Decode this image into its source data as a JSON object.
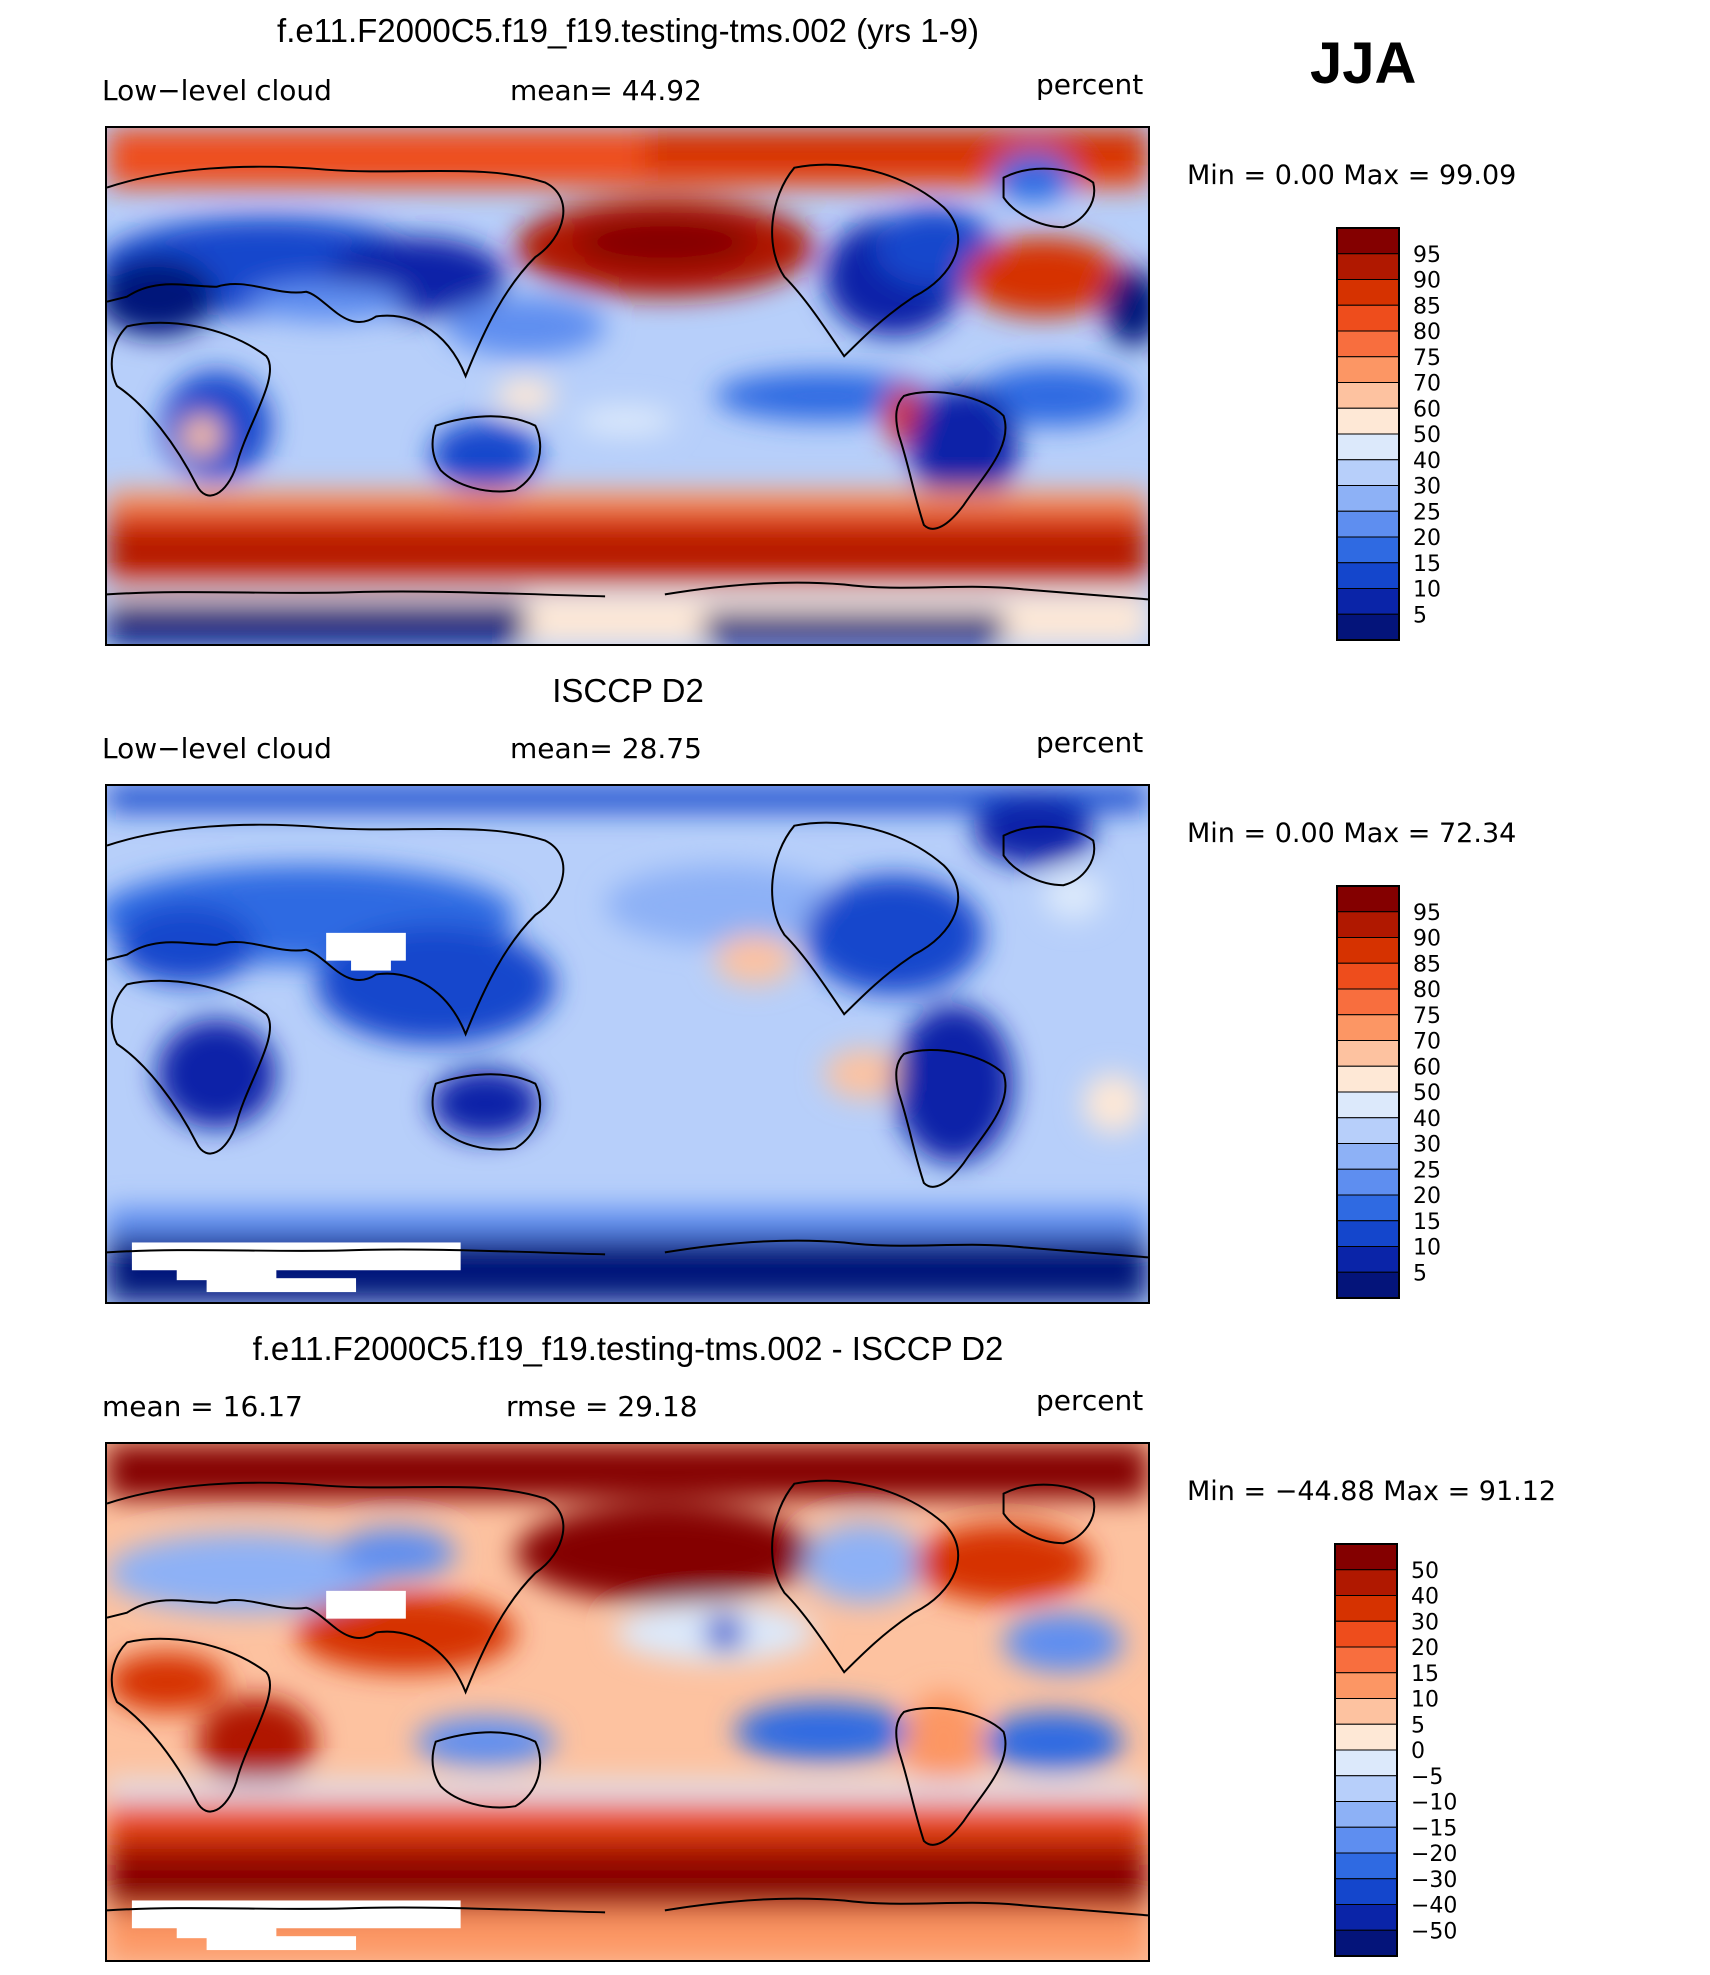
{
  "season": "JJA",
  "units": "percent",
  "panels": [
    {
      "title": "f.e11.F2000C5.f19_f19.testing-tms.002 (yrs 1-9)",
      "left_label": "Low−level cloud",
      "center_label": "mean=   44.92",
      "right_label": "percent",
      "minmax": "Min =     0.00  Max =    99.09",
      "colorbar": {
        "labels": [
          "95",
          "90",
          "85",
          "80",
          "75",
          "70",
          "60",
          "50",
          "40",
          "30",
          "25",
          "20",
          "15",
          "10",
          "5"
        ],
        "colors": [
          "#840000",
          "#b01800",
          "#d63200",
          "#ee4d1c",
          "#f86e3e",
          "#fc9664",
          "#fdc2a0",
          "#fee8d6",
          "#dce9fb",
          "#b7cffa",
          "#8db1f6",
          "#5e8ef0",
          "#2f6ae2",
          "#1446cc",
          "#0a24a8",
          "#04147a"
        ]
      },
      "chart_data": {
        "type": "heatmap",
        "field": "Low-level cloud fraction (model)",
        "mean": 44.92,
        "min": 0.0,
        "max": 99.09,
        "contour_levels": [
          5,
          10,
          15,
          20,
          25,
          30,
          40,
          50,
          60,
          70,
          75,
          80,
          85,
          90,
          95
        ]
      }
    },
    {
      "title": "ISCCP D2",
      "left_label": "Low−level cloud",
      "center_label": "mean=   28.75",
      "right_label": "percent",
      "minmax": "Min =     0.00  Max =    72.34",
      "colorbar": {
        "labels": [
          "95",
          "90",
          "85",
          "80",
          "75",
          "70",
          "60",
          "50",
          "40",
          "30",
          "25",
          "20",
          "15",
          "10",
          "5"
        ],
        "colors": [
          "#840000",
          "#b01800",
          "#d63200",
          "#ee4d1c",
          "#f86e3e",
          "#fc9664",
          "#fdc2a0",
          "#fee8d6",
          "#dce9fb",
          "#b7cffa",
          "#8db1f6",
          "#5e8ef0",
          "#2f6ae2",
          "#1446cc",
          "#0a24a8",
          "#04147a"
        ]
      },
      "chart_data": {
        "type": "heatmap",
        "field": "Low-level cloud fraction (ISCCP D2 observations)",
        "mean": 28.75,
        "min": 0.0,
        "max": 72.34,
        "contour_levels": [
          5,
          10,
          15,
          20,
          25,
          30,
          40,
          50,
          60,
          70,
          75,
          80,
          85,
          90,
          95
        ]
      }
    },
    {
      "title": "f.e11.F2000C5.f19_f19.testing-tms.002 - ISCCP D2",
      "left_label": "mean =    16.17",
      "center_label": "rmse =    29.18",
      "right_label": "percent",
      "minmax": "Min = −44.88  Max =    91.12",
      "colorbar": {
        "labels": [
          "50",
          "40",
          "30",
          "20",
          "15",
          "10",
          "5",
          "0",
          "−5",
          "−10",
          "−15",
          "−20",
          "−30",
          "−40",
          "−50"
        ],
        "colors": [
          "#840000",
          "#b01800",
          "#d63200",
          "#ee4d1c",
          "#f86e3e",
          "#fc9664",
          "#fdc2a0",
          "#fee8d6",
          "#dce9fb",
          "#b7cffa",
          "#8db1f6",
          "#5e8ef0",
          "#2f6ae2",
          "#1446cc",
          "#0a24a8",
          "#04147a"
        ]
      },
      "chart_data": {
        "type": "heatmap",
        "field": "Low-level cloud difference (model minus ISCCP D2)",
        "mean": 16.17,
        "rmse": 29.18,
        "min": -44.88,
        "max": 91.12,
        "contour_levels": [
          -50,
          -40,
          -30,
          -20,
          -15,
          -10,
          -5,
          0,
          5,
          10,
          15,
          20,
          30,
          40,
          50
        ]
      }
    }
  ]
}
